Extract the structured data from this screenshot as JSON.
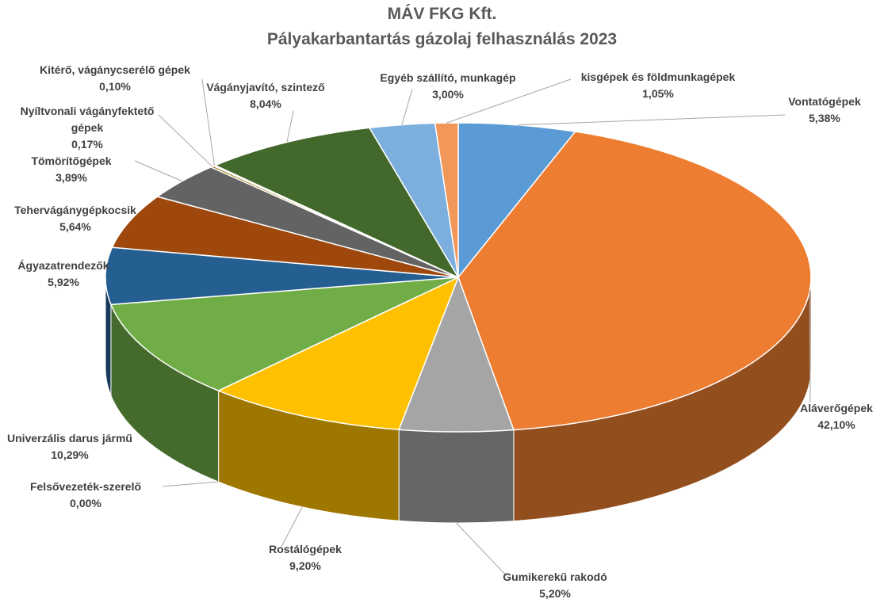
{
  "chart_data": {
    "type": "pie",
    "title": "MÁV FKG Kft.",
    "subtitle": "Pályakarbantartás gázolaj felhasználás 2023",
    "categories": [
      "Vontatógépek",
      "Aláverőgépek",
      "Gumikerekű rakodó",
      "Rostálógépek",
      "Felsővezeték-szerelő",
      "Univerzális darus jármű",
      "Ágyazatrendezők",
      "Tehervágánygépkocsik",
      "Tömörítőgépek",
      "Nyíltvonali vágányfektető gépek",
      "Kitérő, vágánycserélő gépek",
      "Vágányjavító, szintező",
      "Egyéb szállító, munkagép",
      "kisgépek és földmunkagépek"
    ],
    "values": [
      5.38,
      42.1,
      5.2,
      9.2,
      0.0,
      10.29,
      5.92,
      5.64,
      3.89,
      0.17,
      0.1,
      8.04,
      3.0,
      1.05
    ],
    "value_labels": [
      "5,38%",
      "42,10%",
      "5,20%",
      "9,20%",
      "0,00%",
      "10,29%",
      "5,92%",
      "5,64%",
      "3,89%",
      "0,17%",
      "0,10%",
      "8,04%",
      "3,00%",
      "1,05%"
    ],
    "colors": [
      "#5b9bd5",
      "#ed7d31",
      "#a5a5a5",
      "#ffc000",
      "#4472c4",
      "#70ad47",
      "#255e91",
      "#9e480e",
      "#636363",
      "#997300",
      "#264478",
      "#43682b",
      "#7cafdd",
      "#f1975a"
    ]
  }
}
